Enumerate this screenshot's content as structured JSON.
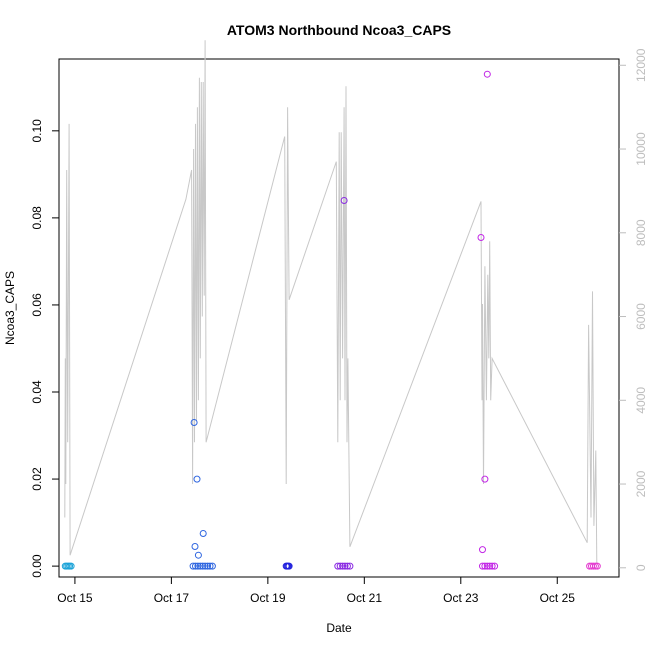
{
  "chart_data": {
    "type": "scatter",
    "title": "ATOM3 Northbound Ncoa3_CAPS",
    "xlabel": "Date",
    "ylabel": "Ncoa3_CAPS",
    "x_ticks": [
      "Oct 15",
      "Oct 17",
      "Oct 19",
      "Oct 21",
      "Oct 23",
      "Oct 25"
    ],
    "x_tick_days": [
      15,
      17,
      19,
      21,
      23,
      25
    ],
    "xlim": [
      14.67,
      26.28
    ],
    "ylim": [
      -0.0025,
      0.1165
    ],
    "y_ticks": [
      0.0,
      0.02,
      0.04,
      0.06,
      0.08,
      0.1
    ],
    "y_tick_labels": [
      "0.00",
      "0.02",
      "0.04",
      "0.06",
      "0.08",
      "0.10"
    ],
    "y2lim": [
      -220,
      12150
    ],
    "y2_ticks": [
      0,
      2000,
      4000,
      6000,
      8000,
      10000,
      12000
    ],
    "y2_tick_labels": [
      "0",
      "2000",
      "4000",
      "6000",
      "8000",
      "10000",
      "12000"
    ],
    "points": [
      {
        "day": 14.8,
        "value": 0.0,
        "color": "#1ba3d8"
      },
      {
        "day": 14.83,
        "value": 0.0,
        "color": "#1ba3d8"
      },
      {
        "day": 14.86,
        "value": 0.0,
        "color": "#1ba3d8"
      },
      {
        "day": 14.89,
        "value": 0.0,
        "color": "#1ba3d8"
      },
      {
        "day": 14.92,
        "value": 0.0,
        "color": "#1ba3d8"
      },
      {
        "day": 17.45,
        "value": 0.0,
        "color": "#2f66e0"
      },
      {
        "day": 17.5,
        "value": 0.0,
        "color": "#2f66e0"
      },
      {
        "day": 17.55,
        "value": 0.0,
        "color": "#2f66e0"
      },
      {
        "day": 17.6,
        "value": 0.0,
        "color": "#2f66e0"
      },
      {
        "day": 17.65,
        "value": 0.0,
        "color": "#2f66e0"
      },
      {
        "day": 17.7,
        "value": 0.0,
        "color": "#2f66e0"
      },
      {
        "day": 17.75,
        "value": 0.0,
        "color": "#2f66e0"
      },
      {
        "day": 17.8,
        "value": 0.0,
        "color": "#2f66e0"
      },
      {
        "day": 17.85,
        "value": 0.0,
        "color": "#2f66e0"
      },
      {
        "day": 17.47,
        "value": 0.033,
        "color": "#2f66e0"
      },
      {
        "day": 17.49,
        "value": 0.0045,
        "color": "#2f66e0"
      },
      {
        "day": 17.53,
        "value": 0.02,
        "color": "#2f66e0"
      },
      {
        "day": 17.56,
        "value": 0.0025,
        "color": "#2f66e0"
      },
      {
        "day": 17.66,
        "value": 0.0075,
        "color": "#2f66e0"
      },
      {
        "day": 19.38,
        "value": 0.0,
        "color": "#2222dd"
      },
      {
        "day": 19.4,
        "value": 0.0,
        "color": "#2222dd"
      },
      {
        "day": 19.42,
        "value": 0.0,
        "color": "#2222dd"
      },
      {
        "day": 19.44,
        "value": 0.0,
        "color": "#2222dd"
      },
      {
        "day": 20.45,
        "value": 0.0,
        "color": "#8a2be2"
      },
      {
        "day": 20.5,
        "value": 0.0,
        "color": "#8a2be2"
      },
      {
        "day": 20.55,
        "value": 0.0,
        "color": "#8a2be2"
      },
      {
        "day": 20.6,
        "value": 0.0,
        "color": "#8a2be2"
      },
      {
        "day": 20.65,
        "value": 0.0,
        "color": "#8a2be2"
      },
      {
        "day": 20.7,
        "value": 0.0,
        "color": "#8a2be2"
      },
      {
        "day": 20.58,
        "value": 0.084,
        "color": "#8a2be2"
      },
      {
        "day": 23.42,
        "value": 0.0755,
        "color": "#c227e6"
      },
      {
        "day": 23.45,
        "value": 0.0038,
        "color": "#c227e6"
      },
      {
        "day": 23.5,
        "value": 0.02,
        "color": "#c227e6"
      },
      {
        "day": 23.55,
        "value": 0.113,
        "color": "#c227e6"
      },
      {
        "day": 23.45,
        "value": 0.0,
        "color": "#c227e6"
      },
      {
        "day": 23.5,
        "value": 0.0,
        "color": "#c227e6"
      },
      {
        "day": 23.55,
        "value": 0.0,
        "color": "#c227e6"
      },
      {
        "day": 23.6,
        "value": 0.0,
        "color": "#c227e6"
      },
      {
        "day": 23.65,
        "value": 0.0,
        "color": "#c227e6"
      },
      {
        "day": 23.7,
        "value": 0.0,
        "color": "#c227e6"
      },
      {
        "day": 25.67,
        "value": 0.0,
        "color": "#e43bd0"
      },
      {
        "day": 25.71,
        "value": 0.0,
        "color": "#e43bd0"
      },
      {
        "day": 25.75,
        "value": 0.0,
        "color": "#e43bd0"
      },
      {
        "day": 25.79,
        "value": 0.0,
        "color": "#e43bd0"
      },
      {
        "day": 25.83,
        "value": 0.0,
        "color": "#e43bd0"
      }
    ],
    "secondary_line": {
      "color": "#c8c8c8",
      "points": [
        [
          14.79,
          1200
        ],
        [
          14.8,
          5000
        ],
        [
          14.81,
          2000
        ],
        [
          14.83,
          9500
        ],
        [
          14.85,
          3000
        ],
        [
          14.88,
          10600
        ],
        [
          14.9,
          300
        ],
        [
          17.3,
          8800
        ],
        [
          17.42,
          9500
        ],
        [
          17.44,
          2000
        ],
        [
          17.46,
          10000
        ],
        [
          17.48,
          3000
        ],
        [
          17.5,
          10600
        ],
        [
          17.52,
          3500
        ],
        [
          17.54,
          11000
        ],
        [
          17.56,
          4000
        ],
        [
          17.58,
          11700
        ],
        [
          17.6,
          5000
        ],
        [
          17.62,
          11600
        ],
        [
          17.64,
          6000
        ],
        [
          17.66,
          11600
        ],
        [
          17.68,
          6500
        ],
        [
          17.7,
          12600
        ],
        [
          17.72,
          3000
        ],
        [
          19.35,
          10300
        ],
        [
          19.38,
          2000
        ],
        [
          19.41,
          11000
        ],
        [
          19.44,
          6400
        ],
        [
          20.42,
          9700
        ],
        [
          20.45,
          3000
        ],
        [
          20.48,
          10400
        ],
        [
          20.5,
          4000
        ],
        [
          20.52,
          10400
        ],
        [
          20.55,
          5000
        ],
        [
          20.58,
          11000
        ],
        [
          20.6,
          4000
        ],
        [
          20.62,
          11500
        ],
        [
          20.64,
          3000
        ],
        [
          20.66,
          5000
        ],
        [
          20.7,
          500
        ],
        [
          23.42,
          8750
        ],
        [
          23.44,
          4000
        ],
        [
          23.45,
          6300
        ],
        [
          23.47,
          2000
        ],
        [
          23.5,
          7200
        ],
        [
          23.53,
          4000
        ],
        [
          23.56,
          7000
        ],
        [
          23.58,
          5000
        ],
        [
          23.6,
          7800
        ],
        [
          23.62,
          4000
        ],
        [
          23.65,
          5000
        ],
        [
          25.62,
          600
        ],
        [
          25.65,
          5800
        ],
        [
          25.7,
          1200
        ],
        [
          25.73,
          6600
        ],
        [
          25.76,
          1000
        ],
        [
          25.8,
          2800
        ],
        [
          25.82,
          100
        ]
      ]
    }
  }
}
